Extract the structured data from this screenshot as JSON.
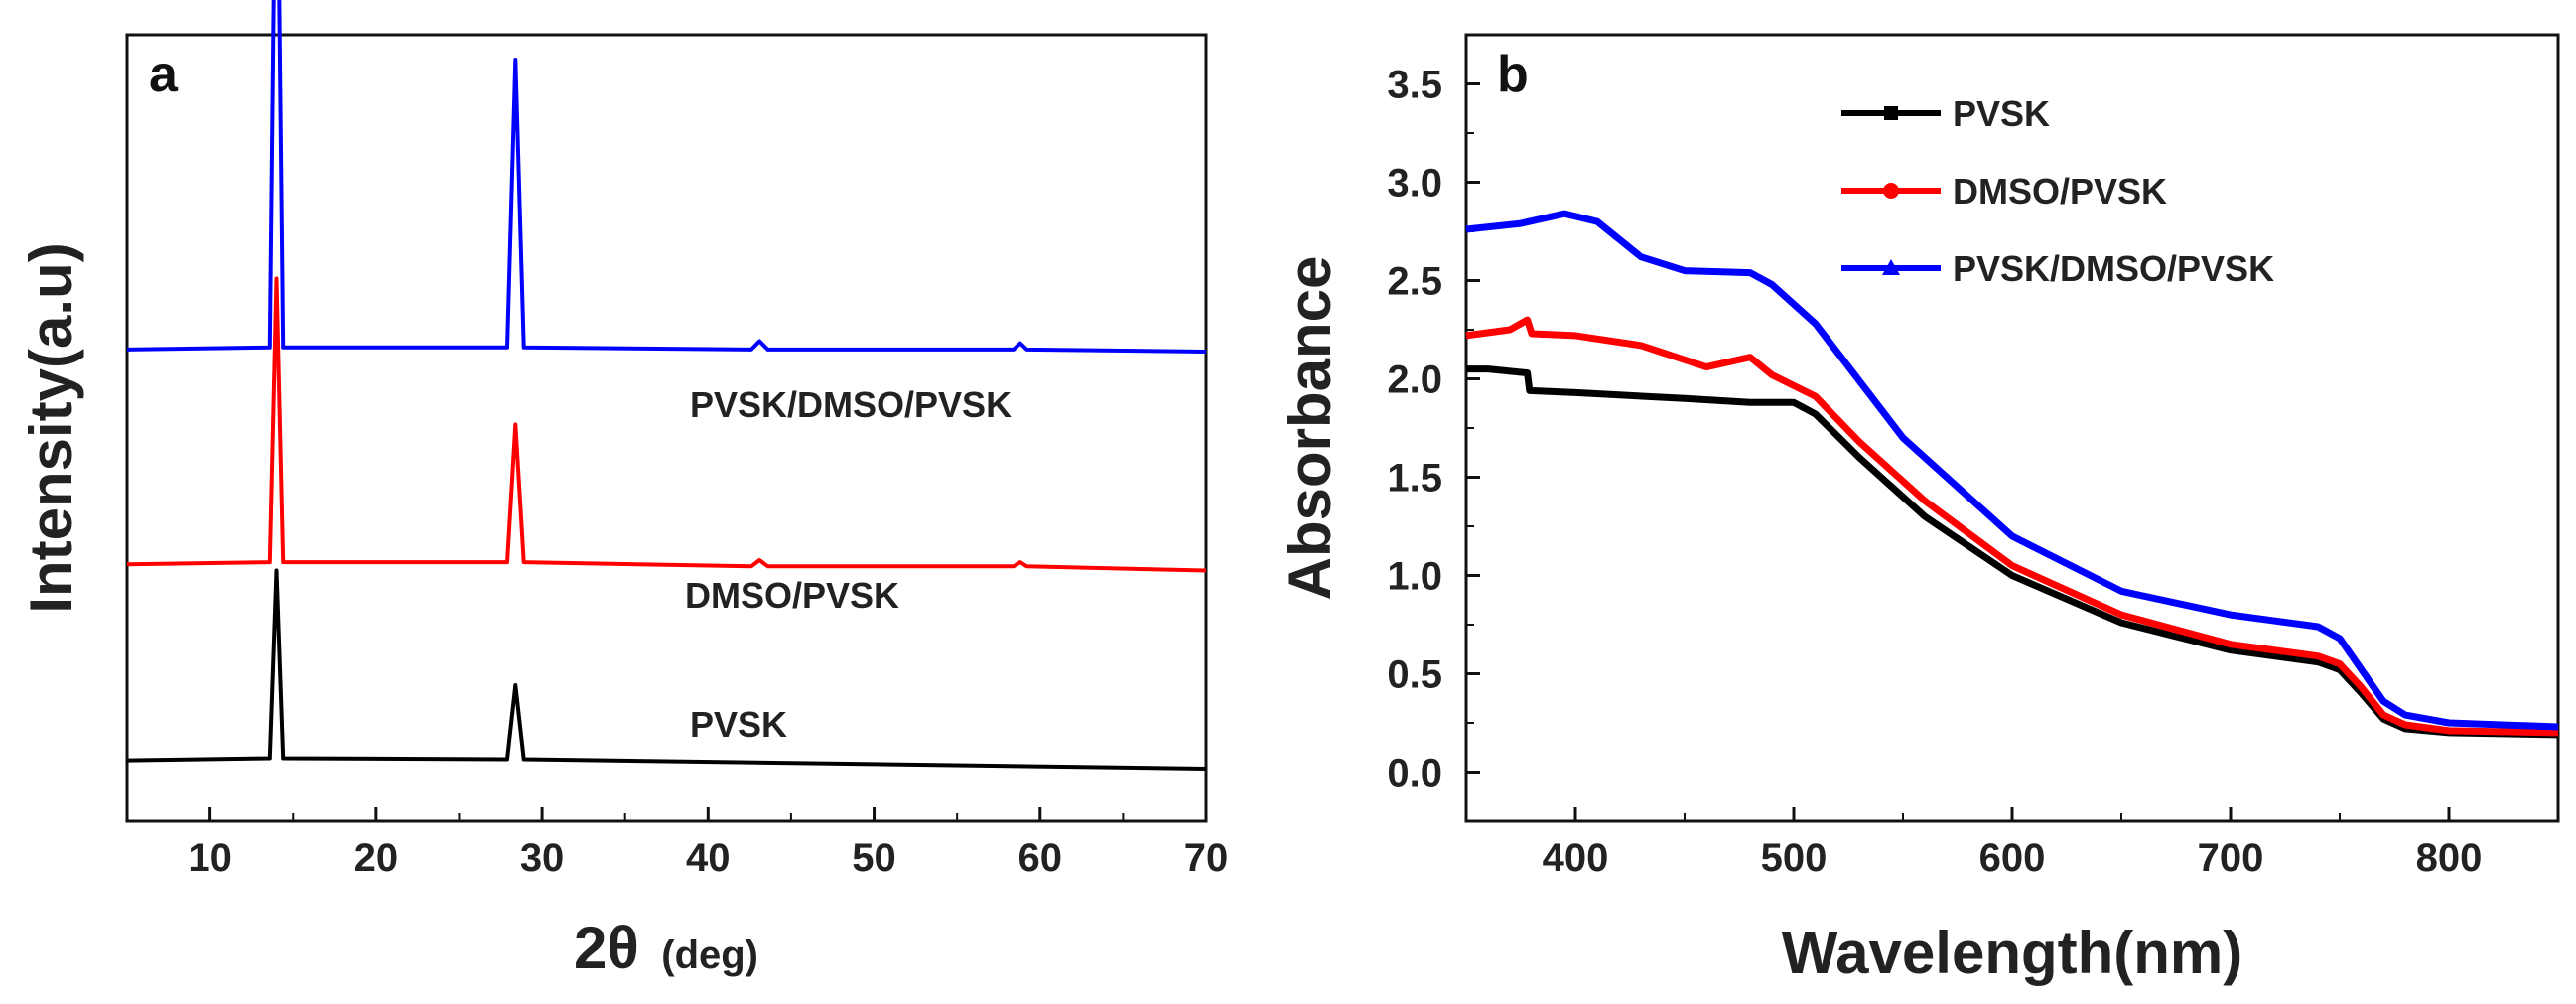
{
  "chart_data": [
    {
      "panel": "a",
      "type": "line",
      "xlabel_main": "2θ",
      "xlabel_unit": "(deg)",
      "ylabel": "Intensity(a.u)",
      "xlim": [
        5,
        70
      ],
      "xticks": [
        10,
        20,
        30,
        40,
        50,
        60,
        70
      ],
      "yticks": [],
      "grid": false,
      "series": [
        {
          "name": "PVSK",
          "label": "PVSK",
          "color": "#000000",
          "offset": 0,
          "x": [
            5,
            13.6,
            14.0,
            14.4,
            27.9,
            28.4,
            28.9,
            70
          ],
          "y": [
            0.04,
            0.05,
            0.95,
            0.05,
            0.045,
            0.4,
            0.045,
            0.0
          ]
        },
        {
          "name": "DMSO/PVSK",
          "label": "DMSO/PVSK",
          "color": "#ff0000",
          "offset": 0.95,
          "x": [
            5,
            13.6,
            14.0,
            14.4,
            27.9,
            28.4,
            28.9,
            42.6,
            43.1,
            43.6,
            58.4,
            58.8,
            59.2,
            70
          ],
          "y": [
            0.03,
            0.04,
            1.4,
            0.04,
            0.04,
            0.7,
            0.04,
            0.02,
            0.05,
            0.02,
            0.02,
            0.04,
            0.02,
            0.0
          ]
        },
        {
          "name": "PVSK/DMSO/PVSK",
          "label": "PVSK/DMSO/PVSK",
          "color": "#0000ff",
          "offset": 2.0,
          "x": [
            5,
            13.6,
            14.0,
            14.4,
            27.9,
            28.4,
            28.9,
            42.6,
            43.1,
            43.6,
            58.4,
            58.8,
            59.2,
            70
          ],
          "y": [
            0.01,
            0.02,
            2.9,
            0.02,
            0.02,
            1.4,
            0.02,
            0.01,
            0.05,
            0.01,
            0.01,
            0.04,
            0.01,
            0.0
          ]
        }
      ]
    },
    {
      "panel": "b",
      "type": "line",
      "xlabel": "Wavelength(nm)",
      "ylabel": "Absorbance",
      "xlim": [
        350,
        850
      ],
      "ylim": [
        -0.25,
        3.75
      ],
      "xticks": [
        400,
        500,
        600,
        700,
        800
      ],
      "yticks": [
        0.0,
        0.5,
        1.0,
        1.5,
        2.0,
        2.5,
        3.0,
        3.5
      ],
      "ytick_labels": [
        "0.0",
        "0.5",
        "1.0",
        "1.5",
        "2.0",
        "2.5",
        "3.0",
        "3.5"
      ],
      "grid": false,
      "legend_position": "top-center",
      "series": [
        {
          "name": "PVSK",
          "color": "#000000",
          "marker": "square",
          "x": [
            350,
            360,
            378,
            379,
            400,
            450,
            480,
            500,
            510,
            530,
            560,
            600,
            650,
            700,
            740,
            750,
            760,
            770,
            780,
            800,
            850
          ],
          "y": [
            2.05,
            2.05,
            2.03,
            1.94,
            1.93,
            1.9,
            1.88,
            1.88,
            1.82,
            1.6,
            1.3,
            1.0,
            0.76,
            0.62,
            0.56,
            0.52,
            0.4,
            0.27,
            0.22,
            0.2,
            0.19
          ]
        },
        {
          "name": "DMSO/PVSK",
          "color": "#ff0000",
          "marker": "circle",
          "x": [
            350,
            370,
            378,
            380,
            400,
            430,
            460,
            480,
            490,
            510,
            530,
            560,
            600,
            650,
            700,
            740,
            750,
            760,
            770,
            780,
            800,
            850
          ],
          "y": [
            2.22,
            2.25,
            2.3,
            2.23,
            2.22,
            2.17,
            2.06,
            2.11,
            2.02,
            1.91,
            1.68,
            1.38,
            1.05,
            0.8,
            0.65,
            0.59,
            0.55,
            0.43,
            0.29,
            0.24,
            0.21,
            0.2
          ]
        },
        {
          "name": "PVSK/DMSO/PVSK",
          "color": "#0000ff",
          "marker": "triangle",
          "x": [
            350,
            375,
            395,
            410,
            430,
            450,
            480,
            490,
            510,
            550,
            600,
            650,
            700,
            740,
            750,
            760,
            770,
            780,
            800,
            850
          ],
          "y": [
            2.76,
            2.79,
            2.84,
            2.8,
            2.62,
            2.55,
            2.54,
            2.48,
            2.28,
            1.7,
            1.2,
            0.92,
            0.8,
            0.74,
            0.68,
            0.52,
            0.36,
            0.29,
            0.25,
            0.23
          ]
        }
      ]
    }
  ],
  "panels": {
    "a": {
      "letter": "a"
    },
    "b": {
      "letter": "b"
    }
  }
}
